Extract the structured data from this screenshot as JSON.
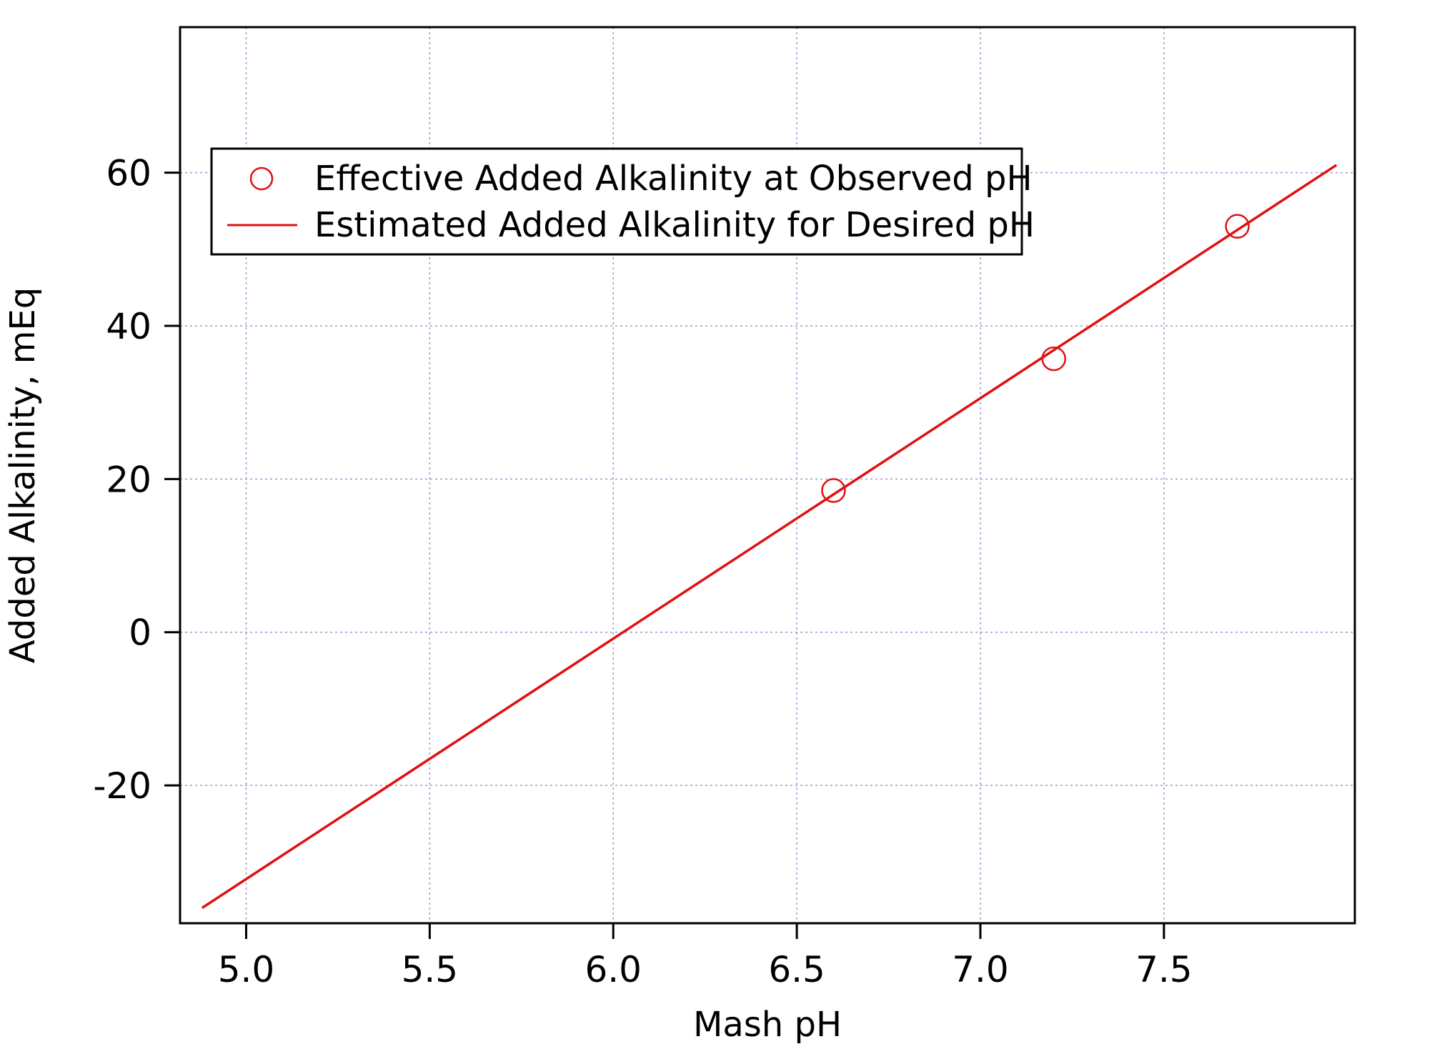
{
  "chart_data": {
    "type": "scatter",
    "title": "",
    "xlabel": "Mash pH",
    "ylabel": "Added Alkalinity, mEq",
    "xlim": [
      4.82,
      8.02
    ],
    "ylim": [
      -38,
      79
    ],
    "x_ticks": [
      5.0,
      5.5,
      6.0,
      6.5,
      7.0,
      7.5
    ],
    "x_tick_labels": [
      "5.0",
      "5.5",
      "6.0",
      "6.5",
      "7.0",
      "7.5"
    ],
    "y_ticks": [
      -20,
      0,
      20,
      40,
      60
    ],
    "y_tick_labels": [
      "-20",
      "0",
      "20",
      "40",
      "60"
    ],
    "grid": true,
    "colors": {
      "series": "#e01010",
      "grid": "#9a9ad0",
      "axis": "#000000"
    },
    "legend_position": "top-left",
    "series": [
      {
        "name": "Effective Added Alkalinity at Observed pH",
        "type": "scatter",
        "marker": "open-circle",
        "x": [
          6.6,
          7.2,
          7.7
        ],
        "y": [
          18.5,
          35.7,
          53.0
        ]
      },
      {
        "name": "Estimated Added Alkalinity for Desired pH",
        "type": "line",
        "x": [
          4.88,
          7.97
        ],
        "y": [
          -36,
          61
        ]
      }
    ]
  }
}
